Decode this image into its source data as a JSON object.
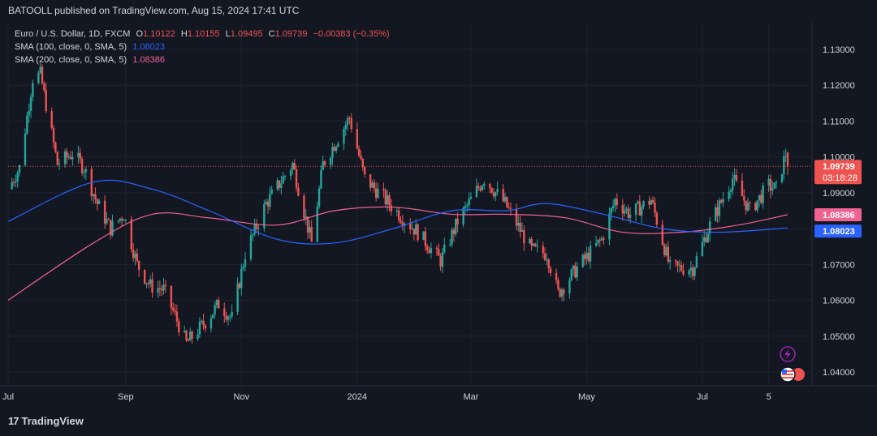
{
  "header": {
    "publisher": "BATOOLL published on TradingView.com, Aug 15, 2024 17:41 UTC"
  },
  "legend": {
    "symbol": "Euro / U.S. Dollar, 1D, FXCM",
    "o_label": "O",
    "o": "1.10122",
    "h_label": "H",
    "h": "1.10155",
    "l_label": "L",
    "l": "1.09495",
    "c_label": "C",
    "c": "1.09739",
    "change": "−0.00383 (−0.35%)",
    "sma100_label": "SMA (100, close, 0, SMA, 5)",
    "sma100_value": "1.08023",
    "sma200_label": "SMA (200, close, 0, SMA, 5)",
    "sma200_value": "1.08386"
  },
  "price_tags": {
    "last_price": "1.09739",
    "countdown": "03:18:28",
    "sma200": "1.08386",
    "sma100": "1.08023"
  },
  "footer": {
    "brand": "TradingView",
    "mark": "17"
  },
  "colors": {
    "background": "#131722",
    "up": "#26a69a",
    "down": "#ef5350",
    "sma100": "#2962ff",
    "sma200": "#f06292",
    "grid": "#1e222d",
    "text": "#d1d4dc"
  },
  "chart_data": {
    "type": "candlestick",
    "symbol": "EURUSD",
    "timeframe": "1D",
    "ylim": [
      1.035,
      1.135
    ],
    "y_ticks": [
      1.04,
      1.05,
      1.06,
      1.07,
      1.08,
      1.09,
      1.1,
      1.11,
      1.12,
      1.13
    ],
    "y_tick_labels": [
      "1.04000",
      "1.05000",
      "1.06000",
      "1.07000",
      "1.08000",
      "1.09000",
      "1.10000",
      "1.11000",
      "1.12000",
      "1.13000"
    ],
    "x_tick_labels": [
      "Jul",
      "Sep",
      "Nov",
      "2024",
      "Mar",
      "May",
      "Jul",
      "5"
    ],
    "x_tick_dates": [
      "2023-07-01",
      "2023-09-01",
      "2023-11-01",
      "2024-01-01",
      "2024-03-01",
      "2024-05-01",
      "2024-07-01",
      "2024-08-05"
    ],
    "date_range": [
      "2023-07-01",
      "2024-08-15"
    ],
    "close_path": [
      [
        "2023-07-01",
        1.091
      ],
      [
        "2023-07-07",
        1.097
      ],
      [
        "2023-07-14",
        1.122
      ],
      [
        "2023-07-18",
        1.123
      ],
      [
        "2023-07-27",
        1.098
      ],
      [
        "2023-08-04",
        1.101
      ],
      [
        "2023-08-10",
        1.097
      ],
      [
        "2023-08-17",
        1.087
      ],
      [
        "2023-08-24",
        1.08
      ],
      [
        "2023-08-31",
        1.084
      ],
      [
        "2023-09-07",
        1.07
      ],
      [
        "2023-09-14",
        1.064
      ],
      [
        "2023-09-21",
        1.063
      ],
      [
        "2023-09-26",
        1.057
      ],
      [
        "2023-10-03",
        1.048
      ],
      [
        "2023-10-13",
        1.054
      ],
      [
        "2023-10-20",
        1.059
      ],
      [
        "2023-10-27",
        1.055
      ],
      [
        "2023-11-03",
        1.073
      ],
      [
        "2023-11-14",
        1.087
      ],
      [
        "2023-11-28",
        1.098
      ],
      [
        "2023-12-08",
        1.076
      ],
      [
        "2023-12-14",
        1.098
      ],
      [
        "2023-12-28",
        1.111
      ],
      [
        "2024-01-05",
        1.094
      ],
      [
        "2024-01-16",
        1.088
      ],
      [
        "2024-01-25",
        1.083
      ],
      [
        "2024-02-02",
        1.079
      ],
      [
        "2024-02-14",
        1.071
      ],
      [
        "2024-02-23",
        1.082
      ],
      [
        "2024-03-08",
        1.094
      ],
      [
        "2024-03-19",
        1.087
      ],
      [
        "2024-04-02",
        1.074
      ],
      [
        "2024-04-10",
        1.073
      ],
      [
        "2024-04-16",
        1.062
      ],
      [
        "2024-04-26",
        1.069
      ],
      [
        "2024-05-09",
        1.077
      ],
      [
        "2024-05-16",
        1.088
      ],
      [
        "2024-05-24",
        1.084
      ],
      [
        "2024-06-04",
        1.088
      ],
      [
        "2024-06-14",
        1.069
      ],
      [
        "2024-06-26",
        1.069
      ],
      [
        "2024-07-05",
        1.081
      ],
      [
        "2024-07-17",
        1.094
      ],
      [
        "2024-07-26",
        1.085
      ],
      [
        "2024-08-05",
        1.092
      ],
      [
        "2024-08-09",
        1.091
      ],
      [
        "2024-08-14",
        1.101
      ],
      [
        "2024-08-15",
        1.0974
      ]
    ],
    "sma100_path": [
      [
        "2023-07-01",
        1.082
      ],
      [
        "2023-08-15",
        1.093
      ],
      [
        "2023-09-15",
        1.091
      ],
      [
        "2023-10-15",
        1.085
      ],
      [
        "2023-11-20",
        1.077
      ],
      [
        "2023-12-20",
        1.076
      ],
      [
        "2024-01-20",
        1.08
      ],
      [
        "2024-02-20",
        1.085
      ],
      [
        "2024-03-20",
        1.085
      ],
      [
        "2024-04-10",
        1.087
      ],
      [
        "2024-05-10",
        1.084
      ],
      [
        "2024-06-10",
        1.08
      ],
      [
        "2024-07-10",
        1.079
      ],
      [
        "2024-08-15",
        1.0802
      ]
    ],
    "sma200_path": [
      [
        "2023-07-01",
        1.06
      ],
      [
        "2023-08-15",
        1.076
      ],
      [
        "2023-09-15",
        1.084
      ],
      [
        "2023-10-15",
        1.083
      ],
      [
        "2023-11-20",
        1.081
      ],
      [
        "2023-12-20",
        1.085
      ],
      [
        "2024-01-20",
        1.086
      ],
      [
        "2024-02-20",
        1.084
      ],
      [
        "2024-03-20",
        1.084
      ],
      [
        "2024-04-20",
        1.083
      ],
      [
        "2024-05-20",
        1.079
      ],
      [
        "2024-06-20",
        1.079
      ],
      [
        "2024-07-20",
        1.081
      ],
      [
        "2024-08-15",
        1.0839
      ]
    ],
    "last_price": 1.09739,
    "sma100_last": 1.08023,
    "sma200_last": 1.08386
  }
}
